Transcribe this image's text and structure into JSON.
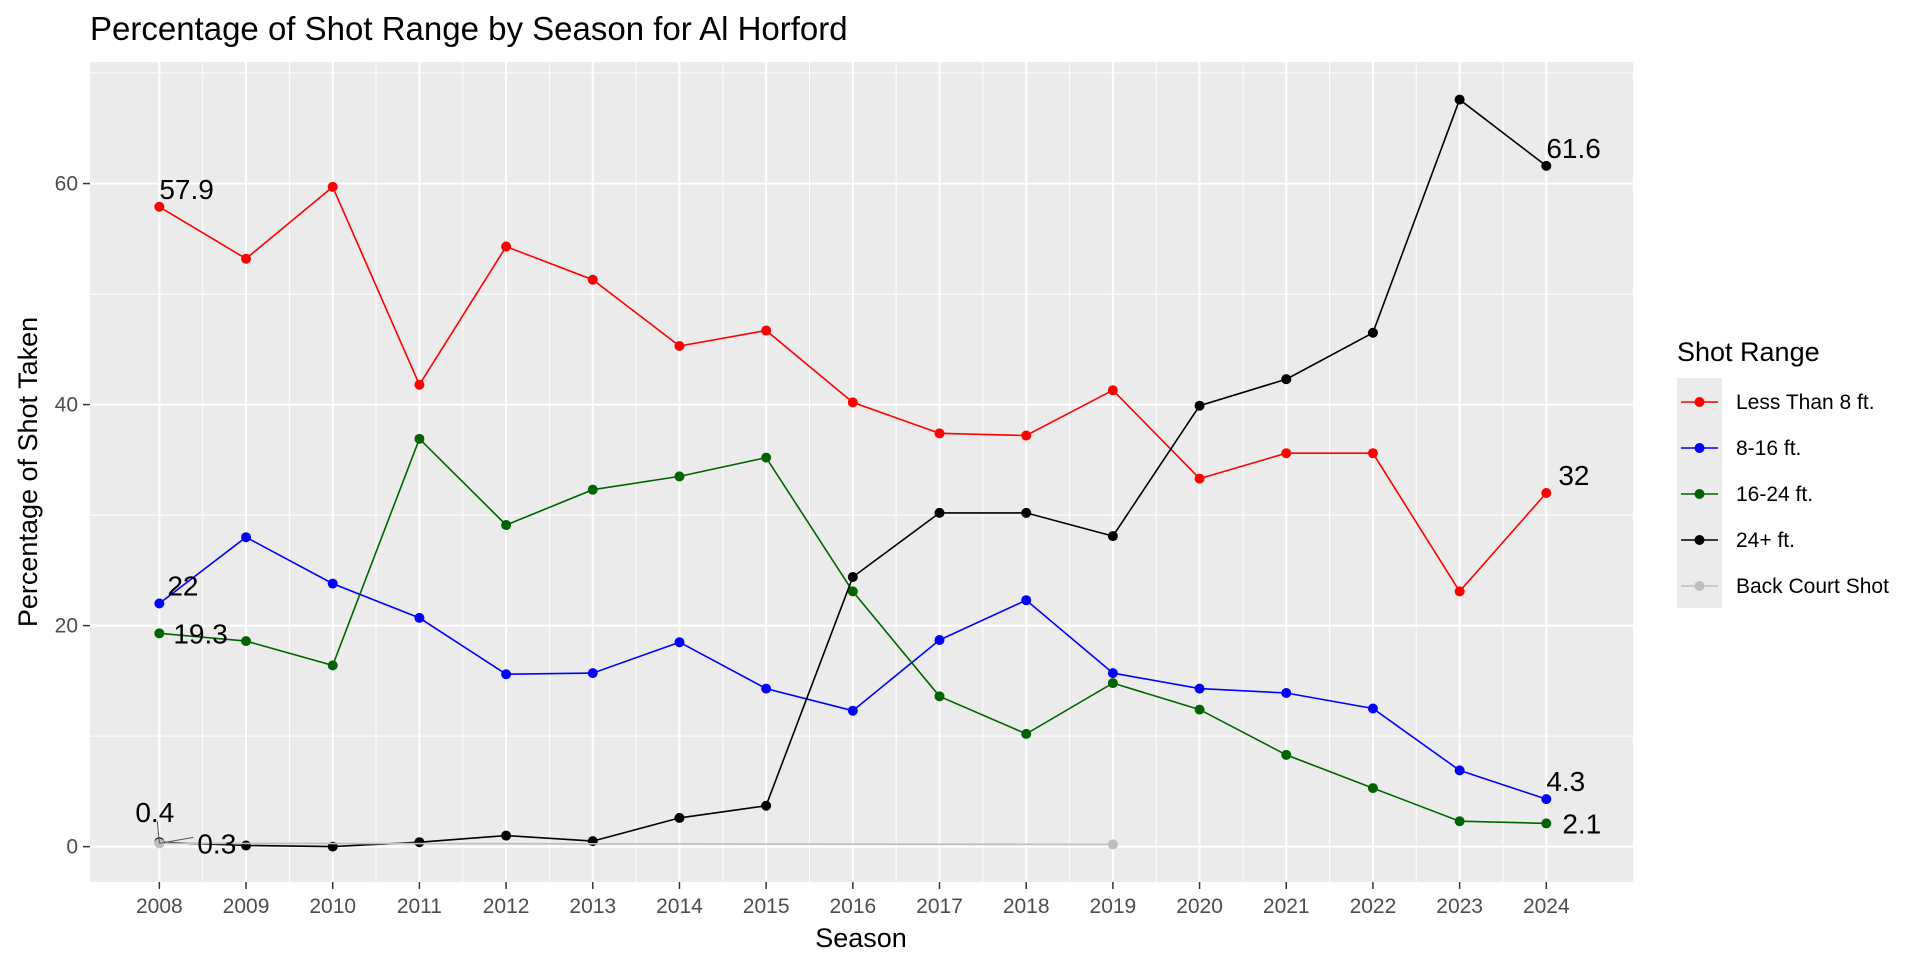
{
  "chart_data": {
    "type": "line",
    "title": "Percentage of Shot Range by Season for Al Horford",
    "xlabel": "Season",
    "ylabel": "Percentage of Shot Taken",
    "x": [
      2008,
      2009,
      2010,
      2011,
      2012,
      2013,
      2014,
      2015,
      2016,
      2017,
      2018,
      2019,
      2020,
      2021,
      2022,
      2023,
      2024
    ],
    "xlim": [
      2007.2,
      2025.0
    ],
    "ylim": [
      -3.2,
      71.0
    ],
    "yticks": [
      0,
      20,
      40,
      60
    ],
    "grid": true,
    "legend": {
      "title": "Shot Range",
      "position": "right"
    },
    "series": [
      {
        "name": "Less Than 8 ft.",
        "color": "#ff0000",
        "x": [
          2008,
          2009,
          2010,
          2011,
          2012,
          2013,
          2014,
          2015,
          2016,
          2017,
          2018,
          2019,
          2020,
          2021,
          2022,
          2023,
          2024
        ],
        "values": [
          57.9,
          53.2,
          59.7,
          41.8,
          54.3,
          51.3,
          45.3,
          46.7,
          40.2,
          37.4,
          37.2,
          41.3,
          33.3,
          35.6,
          35.6,
          23.1,
          32.0
        ]
      },
      {
        "name": "8-16 ft.",
        "color": "#0000ff",
        "x": [
          2008,
          2009,
          2010,
          2011,
          2012,
          2013,
          2014,
          2015,
          2016,
          2017,
          2018,
          2019,
          2020,
          2021,
          2022,
          2023,
          2024
        ],
        "values": [
          22.0,
          28.0,
          23.8,
          20.7,
          15.6,
          15.7,
          18.5,
          14.3,
          12.3,
          18.7,
          22.3,
          15.7,
          14.3,
          13.9,
          12.5,
          6.9,
          4.3
        ]
      },
      {
        "name": "16-24 ft.",
        "color": "#006400",
        "x": [
          2008,
          2009,
          2010,
          2011,
          2012,
          2013,
          2014,
          2015,
          2016,
          2017,
          2018,
          2019,
          2020,
          2021,
          2022,
          2023,
          2024
        ],
        "values": [
          19.3,
          18.6,
          16.4,
          36.9,
          29.1,
          32.3,
          33.5,
          35.2,
          23.1,
          13.6,
          10.2,
          14.8,
          12.4,
          8.3,
          5.3,
          2.3,
          2.1
        ]
      },
      {
        "name": "24+ ft.",
        "color": "#000000",
        "x": [
          2008,
          2009,
          2010,
          2011,
          2012,
          2013,
          2014,
          2015,
          2016,
          2017,
          2018,
          2019,
          2020,
          2021,
          2022,
          2023,
          2024
        ],
        "values": [
          0.4,
          0.1,
          0.0,
          0.4,
          1.0,
          0.5,
          2.6,
          3.7,
          24.4,
          30.2,
          30.2,
          28.1,
          39.9,
          42.3,
          46.5,
          67.6,
          61.6
        ]
      },
      {
        "name": "Back Court Shot",
        "color": "#bebebe",
        "x": [
          2008,
          2019
        ],
        "values": [
          0.3,
          0.2
        ]
      }
    ],
    "annotations": [
      {
        "text": "57.9",
        "x": 2008,
        "y": 57.9,
        "dx": 0,
        "dy": -18,
        "anchor": "start"
      },
      {
        "text": "22",
        "x": 2008,
        "y": 22.0,
        "dx": 8,
        "dy": -18,
        "anchor": "start"
      },
      {
        "text": "19.3",
        "x": 2008,
        "y": 19.3,
        "dx": 14,
        "dy": 0,
        "anchor": "start"
      },
      {
        "text": "0.4",
        "x": 2008,
        "y": 0.4,
        "dx": -24,
        "dy": -30,
        "anchor": "start"
      },
      {
        "text": "0.3",
        "x": 2008,
        "y": 0.3,
        "dx": 38,
        "dy": 0,
        "anchor": "start"
      },
      {
        "text": "61.6",
        "x": 2024,
        "y": 61.6,
        "dx": 0,
        "dy": -18,
        "anchor": "start"
      },
      {
        "text": "32",
        "x": 2024,
        "y": 32.0,
        "dx": 12,
        "dy": -18,
        "anchor": "start"
      },
      {
        "text": "4.3",
        "x": 2024,
        "y": 4.3,
        "dx": 0,
        "dy": -18,
        "anchor": "start"
      },
      {
        "text": "2.1",
        "x": 2024,
        "y": 2.1,
        "dx": 16,
        "dy": 0,
        "anchor": "start"
      }
    ]
  }
}
